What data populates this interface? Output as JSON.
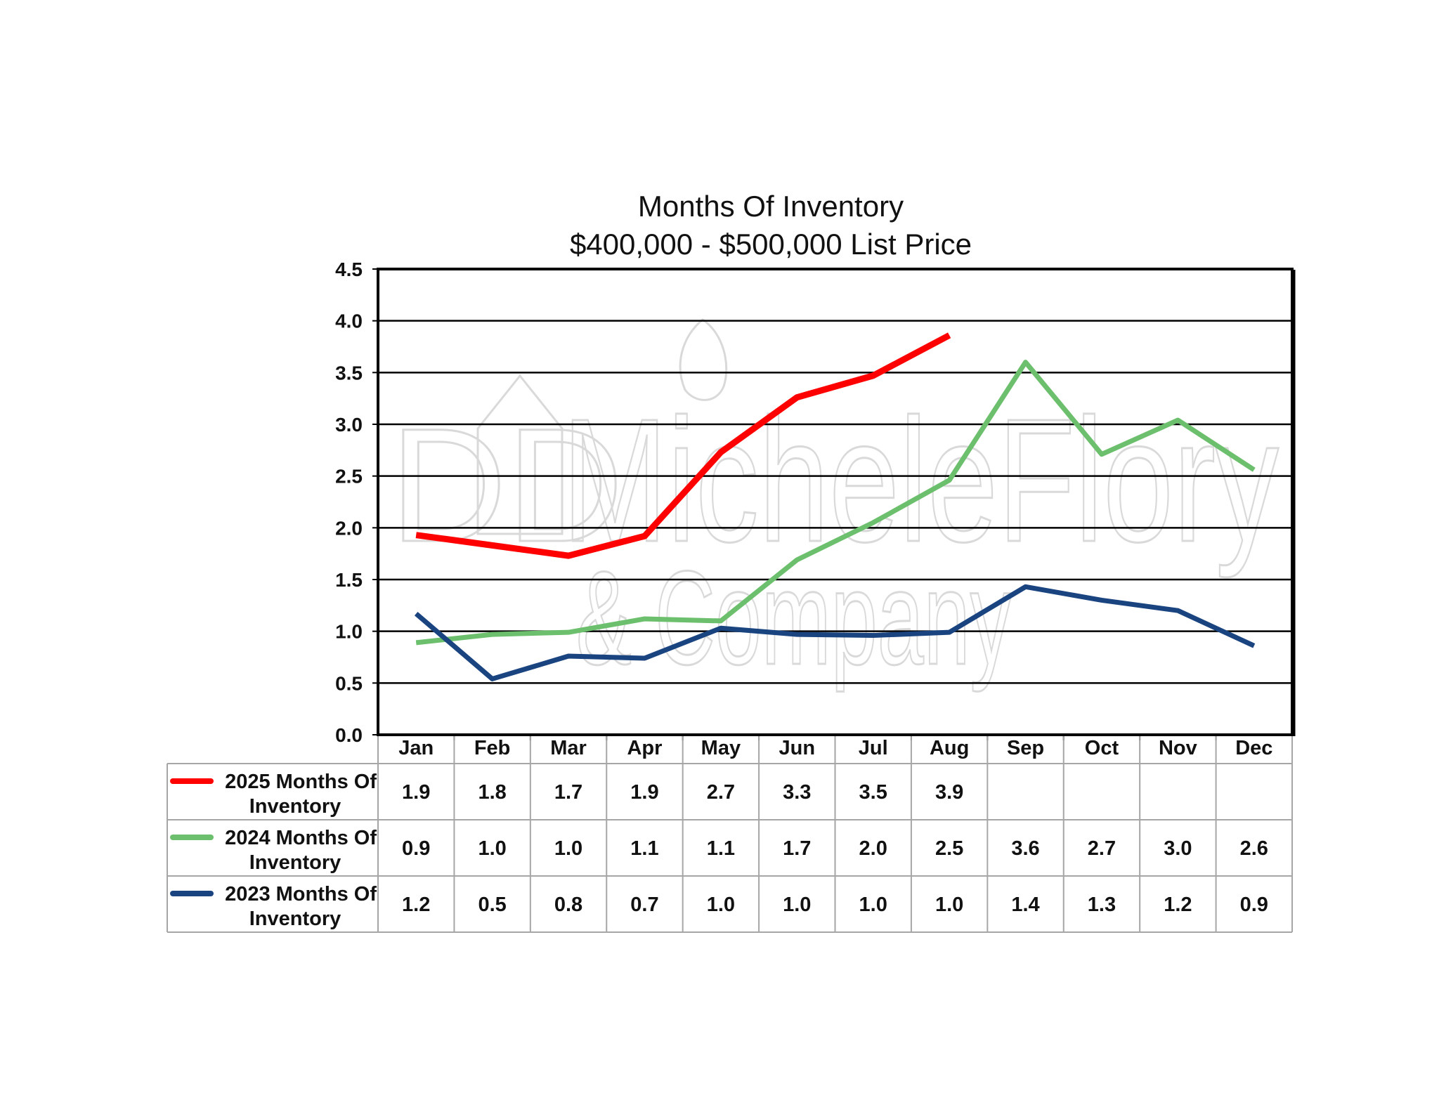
{
  "chart_data": {
    "type": "line",
    "title": "Months Of Inventory",
    "subtitle": "$400,000 - $500,000 List Price",
    "categories": [
      "Jan",
      "Feb",
      "Mar",
      "Apr",
      "May",
      "Jun",
      "Jul",
      "Aug",
      "Sep",
      "Oct",
      "Nov",
      "Dec"
    ],
    "ylim": [
      0,
      4.5
    ],
    "yticks": [
      "0.0",
      "0.5",
      "1.0",
      "1.5",
      "2.0",
      "2.5",
      "3.0",
      "3.5",
      "4.0",
      "4.5"
    ],
    "grid": true,
    "legend_placement": "data-table-left",
    "series": [
      {
        "name_line1": "2025 Months Of",
        "name_line2": "Inventory",
        "color": "#ff0000",
        "values": [
          1.93,
          1.83,
          1.73,
          1.92,
          2.73,
          3.26,
          3.47,
          3.86,
          null,
          null,
          null,
          null
        ],
        "labels": [
          "1.9",
          "1.8",
          "1.7",
          "1.9",
          "2.7",
          "3.3",
          "3.5",
          "3.9",
          "",
          "",
          "",
          ""
        ]
      },
      {
        "name_line1": "2024 Months Of",
        "name_line2": "Inventory",
        "color": "#6cbf6c",
        "values": [
          0.89,
          0.97,
          0.99,
          1.12,
          1.1,
          1.69,
          2.05,
          2.46,
          3.6,
          2.71,
          3.04,
          2.56
        ],
        "labels": [
          "0.9",
          "1.0",
          "1.0",
          "1.1",
          "1.1",
          "1.7",
          "2.0",
          "2.5",
          "3.6",
          "2.7",
          "3.0",
          "2.6"
        ]
      },
      {
        "name_line1": "2023 Months Of",
        "name_line2": "Inventory",
        "color": "#1a4480",
        "values": [
          1.17,
          0.54,
          0.76,
          0.74,
          1.03,
          0.97,
          0.96,
          0.99,
          1.43,
          1.3,
          1.2,
          0.86
        ],
        "labels": [
          "1.2",
          "0.5",
          "0.8",
          "0.7",
          "1.0",
          "1.0",
          "1.0",
          "1.0",
          "1.4",
          "1.3",
          "1.2",
          "0.9"
        ]
      }
    ]
  },
  "watermark": {
    "line1": "MicheleFlory",
    "line2": "& Company",
    "monogram": "DD"
  }
}
